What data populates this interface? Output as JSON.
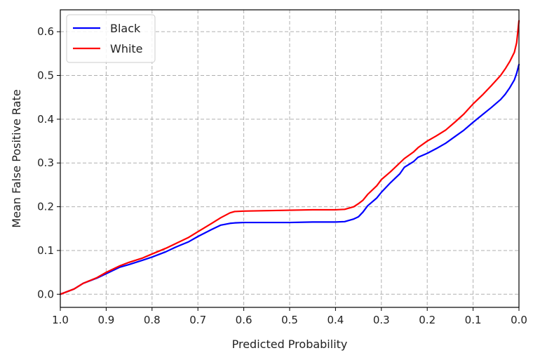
{
  "chart_data": {
    "type": "line",
    "xlabel": "Predicted Probability",
    "ylabel": "Mean False Positive Rate",
    "xlim": [
      1.0,
      0.0
    ],
    "ylim": [
      -0.03,
      0.65
    ],
    "x_reversed": true,
    "grid": true,
    "legend_position": "top-left",
    "xticks": [
      "1.0",
      "0.9",
      "0.8",
      "0.7",
      "0.6",
      "0.5",
      "0.4",
      "0.3",
      "0.2",
      "0.1",
      "0.0"
    ],
    "yticks": [
      "0.0",
      "0.1",
      "0.2",
      "0.3",
      "0.4",
      "0.5",
      "0.6"
    ],
    "series": [
      {
        "name": "Black",
        "color": "#0000ff",
        "x": [
          1.0,
          0.97,
          0.95,
          0.92,
          0.9,
          0.87,
          0.85,
          0.82,
          0.8,
          0.77,
          0.75,
          0.72,
          0.7,
          0.67,
          0.65,
          0.63,
          0.62,
          0.6,
          0.55,
          0.5,
          0.45,
          0.4,
          0.38,
          0.36,
          0.35,
          0.34,
          0.33,
          0.31,
          0.3,
          0.28,
          0.26,
          0.25,
          0.23,
          0.22,
          0.2,
          0.18,
          0.16,
          0.14,
          0.12,
          0.1,
          0.08,
          0.06,
          0.04,
          0.03,
          0.02,
          0.01,
          0.005,
          0.0
        ],
        "y": [
          0.0,
          0.012,
          0.025,
          0.037,
          0.047,
          0.062,
          0.068,
          0.078,
          0.085,
          0.097,
          0.107,
          0.12,
          0.132,
          0.148,
          0.158,
          0.162,
          0.163,
          0.164,
          0.164,
          0.164,
          0.165,
          0.165,
          0.166,
          0.172,
          0.177,
          0.188,
          0.202,
          0.22,
          0.233,
          0.255,
          0.275,
          0.29,
          0.303,
          0.313,
          0.322,
          0.333,
          0.345,
          0.36,
          0.375,
          0.393,
          0.41,
          0.427,
          0.445,
          0.457,
          0.472,
          0.49,
          0.505,
          0.525
        ]
      },
      {
        "name": "White",
        "color": "#ff0000",
        "x": [
          1.0,
          0.97,
          0.95,
          0.92,
          0.9,
          0.87,
          0.85,
          0.82,
          0.8,
          0.77,
          0.75,
          0.72,
          0.7,
          0.67,
          0.65,
          0.63,
          0.62,
          0.6,
          0.55,
          0.5,
          0.45,
          0.4,
          0.38,
          0.37,
          0.36,
          0.35,
          0.34,
          0.33,
          0.31,
          0.3,
          0.28,
          0.26,
          0.25,
          0.23,
          0.22,
          0.2,
          0.18,
          0.16,
          0.14,
          0.12,
          0.1,
          0.08,
          0.06,
          0.04,
          0.03,
          0.02,
          0.01,
          0.005,
          0.0
        ],
        "y": [
          0.0,
          0.012,
          0.025,
          0.038,
          0.05,
          0.065,
          0.073,
          0.083,
          0.092,
          0.105,
          0.115,
          0.13,
          0.143,
          0.162,
          0.175,
          0.186,
          0.189,
          0.19,
          0.191,
          0.192,
          0.193,
          0.193,
          0.194,
          0.197,
          0.2,
          0.207,
          0.215,
          0.228,
          0.248,
          0.262,
          0.28,
          0.3,
          0.31,
          0.325,
          0.335,
          0.35,
          0.362,
          0.375,
          0.393,
          0.412,
          0.435,
          0.455,
          0.477,
          0.5,
          0.515,
          0.532,
          0.553,
          0.575,
          0.625
        ]
      }
    ]
  }
}
